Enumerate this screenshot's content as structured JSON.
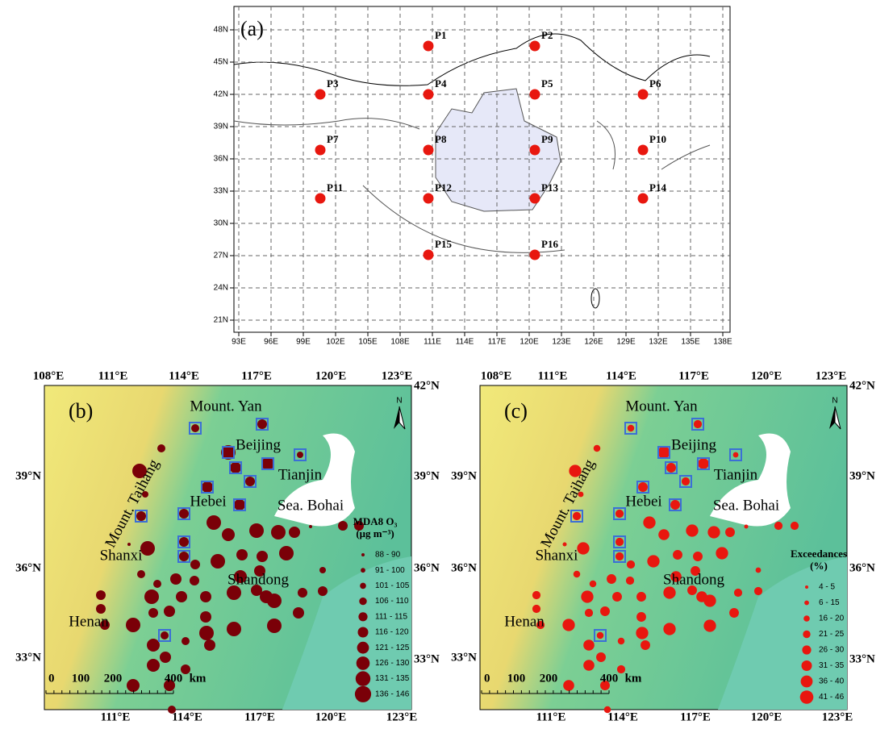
{
  "panel_a": {
    "label": "(a)",
    "lat_ticks": [
      "48N",
      "45N",
      "42N",
      "39N",
      "36N",
      "33N",
      "30N",
      "27N",
      "24N",
      "21N"
    ],
    "lon_ticks": [
      "93E",
      "96E",
      "99E",
      "102E",
      "105E",
      "108E",
      "111E",
      "114E",
      "117E",
      "120E",
      "123E",
      "126E",
      "129E",
      "132E",
      "135E",
      "138E"
    ],
    "points": [
      "P1",
      "P2",
      "P3",
      "P4",
      "P5",
      "P6",
      "P7",
      "P8",
      "P9",
      "P10",
      "P11",
      "P12",
      "P13",
      "P14",
      "P15",
      "P16"
    ]
  },
  "panel_b": {
    "label": "(b)",
    "top_lon": [
      "108°E",
      "111°E",
      "114°E",
      "117°E",
      "120°E",
      "123°E"
    ],
    "bottom_lon": [
      "111°E",
      "114°E",
      "117°E",
      "120°E",
      "123°E"
    ],
    "left_lat": [
      "39°N",
      "36°N",
      "33°N"
    ],
    "right_lat": [
      "42°N",
      "39°N",
      "36°N",
      "33°N"
    ],
    "places": [
      "Mount. Yan",
      "Beijing",
      "Tianjin",
      "Hebei",
      "Sea. Bohai",
      "Mount. Taihang",
      "Shanxi",
      "Shandong",
      "Henan"
    ],
    "legend": {
      "title": "MDA8 O₃",
      "unit": "(μg m⁻³)",
      "items": [
        "88 - 90",
        "91 - 100",
        "101 - 105",
        "106 - 110",
        "111 - 115",
        "116 - 120",
        "121 - 125",
        "126 - 130",
        "131 - 135",
        "136 - 146"
      ]
    },
    "scale": [
      "0",
      "100",
      "200",
      "400",
      "km"
    ],
    "north": "N"
  },
  "panel_c": {
    "label": "(c)",
    "top_lon": [
      "108°E",
      "111°E",
      "114°E",
      "117°E",
      "120°E",
      "123°E"
    ],
    "bottom_lon": [
      "111°E",
      "114°E",
      "117°E",
      "120°E",
      "123°E"
    ],
    "left_lat": [
      "39°N",
      "36°N",
      "33°N"
    ],
    "right_lat": [
      "42°N",
      "39°N",
      "36°N",
      "33°N"
    ],
    "places": [
      "Mount. Yan",
      "Beijing",
      "Tianjin",
      "Hebei",
      "Sea. Bohai",
      "Mount. Taihang",
      "Shanxi",
      "Shandong",
      "Henan"
    ],
    "legend": {
      "title": "Exceedances",
      "unit": "(%)",
      "items": [
        "4 - 5",
        "6 - 15",
        "16 - 20",
        "21 - 25",
        "26 - 30",
        "31 - 35",
        "36 - 40",
        "41 - 46"
      ]
    },
    "scale": [
      "0",
      "100",
      "200",
      "400",
      "km"
    ],
    "north": "N"
  }
}
